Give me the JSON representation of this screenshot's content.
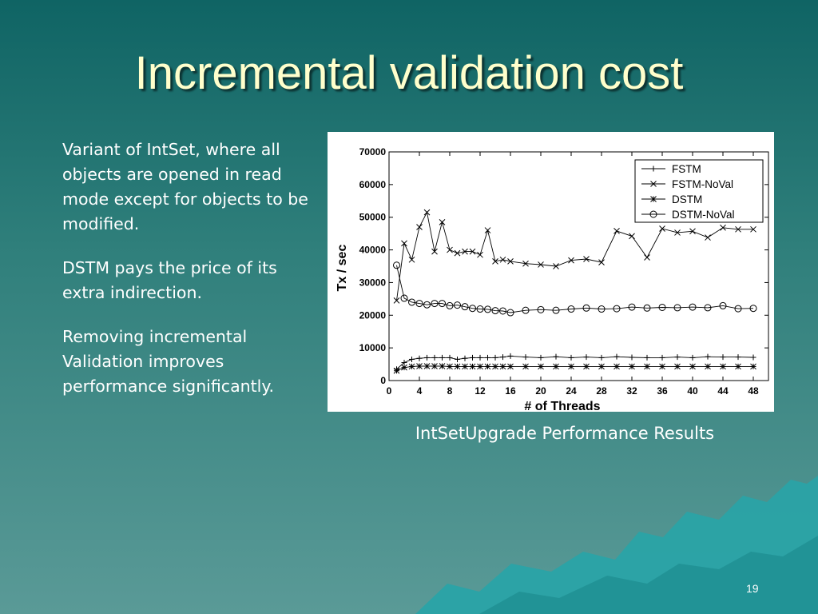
{
  "slide": {
    "title": "Incremental validation cost",
    "bullets": [
      "Variant of IntSet, where all objects are opened in read mode except for objects to be modified.",
      "DSTM pays the price of its extra indirection.",
      "Removing incremental Validation improves performance significantly."
    ],
    "caption": "IntSetUpgrade Performance Results",
    "page_number": "19",
    "colors": {
      "background_top": "#0f6464",
      "background_bottom": "#5a9a97",
      "title": "#ffffcc",
      "text": "#ffffff",
      "mountain": "#2aa3a6"
    }
  },
  "chart_data": {
    "type": "line",
    "xlabel": "# of Threads",
    "ylabel": "Tx / sec",
    "xlim": [
      0,
      50
    ],
    "ylim": [
      0,
      70000
    ],
    "xticks": [
      0,
      4,
      8,
      12,
      16,
      20,
      24,
      28,
      32,
      36,
      40,
      44,
      48
    ],
    "yticks": [
      0,
      10000,
      20000,
      30000,
      40000,
      50000,
      60000,
      70000
    ],
    "legend_position": "top-right",
    "series": [
      {
        "name": "FSTM",
        "marker": "plus",
        "x": [
          1,
          2,
          3,
          4,
          5,
          6,
          7,
          8,
          9,
          10,
          11,
          12,
          13,
          14,
          15,
          16,
          18,
          20,
          22,
          24,
          26,
          28,
          30,
          32,
          34,
          36,
          38,
          40,
          42,
          44,
          46,
          48
        ],
        "y": [
          3500,
          5500,
          6500,
          6800,
          7000,
          7000,
          7000,
          7000,
          6500,
          6800,
          7000,
          7000,
          7000,
          7000,
          7200,
          7500,
          7200,
          7000,
          7300,
          7000,
          7200,
          7000,
          7300,
          7100,
          7000,
          7000,
          7200,
          7000,
          7300,
          7200,
          7200,
          7100
        ]
      },
      {
        "name": "FSTM-NoVal",
        "marker": "x",
        "x": [
          1,
          2,
          3,
          4,
          5,
          6,
          7,
          8,
          9,
          10,
          11,
          12,
          13,
          14,
          15,
          16,
          18,
          20,
          22,
          24,
          26,
          28,
          30,
          32,
          34,
          36,
          38,
          40,
          42,
          44,
          46,
          48
        ],
        "y": [
          24500,
          42000,
          37000,
          47000,
          51500,
          39500,
          48500,
          40000,
          39000,
          39500,
          39500,
          38500,
          46000,
          36500,
          37000,
          36500,
          35800,
          35500,
          35000,
          36800,
          37200,
          36200,
          45800,
          44200,
          37700,
          46500,
          45300,
          45700,
          43800,
          46800,
          46300,
          46300
        ]
      },
      {
        "name": "DSTM",
        "marker": "star",
        "x": [
          1,
          2,
          3,
          4,
          5,
          6,
          7,
          8,
          9,
          10,
          11,
          12,
          13,
          14,
          15,
          16,
          18,
          20,
          22,
          24,
          26,
          28,
          30,
          32,
          34,
          36,
          38,
          40,
          42,
          44,
          46,
          48
        ],
        "y": [
          3000,
          4000,
          4300,
          4400,
          4400,
          4400,
          4400,
          4300,
          4300,
          4300,
          4300,
          4300,
          4300,
          4300,
          4300,
          4300,
          4300,
          4300,
          4300,
          4300,
          4300,
          4300,
          4300,
          4300,
          4300,
          4300,
          4300,
          4300,
          4300,
          4300,
          4300,
          4300
        ]
      },
      {
        "name": "DSTM-NoVal",
        "marker": "circle",
        "x": [
          1,
          2,
          3,
          4,
          5,
          6,
          7,
          8,
          9,
          10,
          11,
          12,
          13,
          14,
          15,
          16,
          18,
          20,
          22,
          24,
          26,
          28,
          30,
          32,
          34,
          36,
          38,
          40,
          42,
          44,
          46,
          48
        ],
        "y": [
          35300,
          25200,
          24000,
          23600,
          23200,
          23600,
          23600,
          22900,
          23100,
          22600,
          22100,
          21900,
          21800,
          21400,
          21300,
          20800,
          21500,
          21700,
          21500,
          21900,
          22200,
          21900,
          22000,
          22500,
          22200,
          22400,
          22300,
          22500,
          22300,
          22900,
          22000,
          22100
        ]
      }
    ]
  }
}
